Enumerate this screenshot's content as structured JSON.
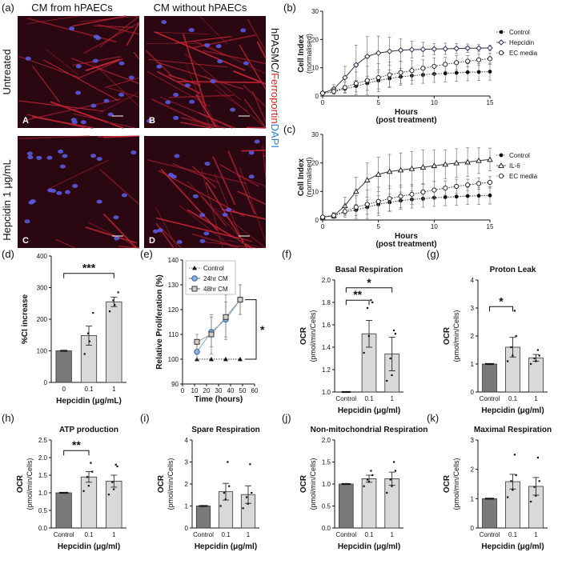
{
  "figure": {
    "panel_letters": [
      "(a)",
      "(b)",
      "(c)",
      "(d)",
      "(e)",
      "(f)",
      "(g)",
      "(h)",
      "(i)",
      "(j)",
      "(k)"
    ]
  },
  "micrographs": {
    "col_headers": [
      "CM from hPAECs",
      "CM without hPAECs"
    ],
    "row_labels": [
      "Untreated",
      "Hepcidin 1 μg/mL"
    ],
    "side_label_parts": [
      "hPASMC/",
      "Ferroportin",
      "DAPI"
    ],
    "side_label_colors": [
      "#111111",
      "#e0201a",
      "#2a7fd4"
    ],
    "scale_bar": "20 μm",
    "panel_tags": [
      "A",
      "B",
      "C",
      "D"
    ],
    "bg_color": "#2b0712",
    "fiber_color": "#c02535",
    "nuclei_color": "#5a5ae0"
  },
  "sig": {
    "d": "***",
    "e": "*",
    "f1": "**",
    "f2": "*",
    "g": "*",
    "h": "**"
  },
  "chart_data": [
    {
      "id": "b",
      "type": "line",
      "xlabel": "Hours",
      "xlabel2": "(post treatment)",
      "ylabel": "Cell Index",
      "ylabel2": "(normalised)",
      "xlim": [
        0,
        15
      ],
      "ylim": [
        0,
        30
      ],
      "xticks": [
        "0",
        "5",
        "10",
        "15"
      ],
      "yticks": [
        "0",
        "10",
        "20",
        "30"
      ],
      "x": [
        0,
        1,
        2,
        3,
        4,
        5,
        6,
        7,
        8,
        9,
        10,
        11,
        12,
        13,
        14,
        15
      ],
      "series": [
        {
          "name": "Control",
          "marker": "filled-circle",
          "dash": "dotted",
          "values": [
            1,
            1.5,
            2.5,
            3.5,
            4.5,
            5.5,
            6.2,
            6.8,
            7.2,
            7.5,
            7.8,
            8,
            8.2,
            8.4,
            8.5,
            8.6
          ],
          "err": [
            0.5,
            0.8,
            1.2,
            2,
            2.5,
            3,
            3,
            3,
            3,
            3,
            3,
            3,
            3,
            3,
            3,
            3
          ]
        },
        {
          "name": "Hepcidin",
          "marker": "open-diamond",
          "dash": "solid",
          "values": [
            1,
            2.5,
            6.5,
            11,
            14,
            15.2,
            15.8,
            16.2,
            16.4,
            16.5,
            16.6,
            16.7,
            16.8,
            16.9,
            16.9,
            17
          ],
          "err": [
            0.5,
            1.5,
            4,
            7,
            7,
            6,
            5,
            4,
            3,
            2.5,
            2,
            2,
            1.8,
            1.5,
            1.3,
            1
          ]
        },
        {
          "name": "EC media",
          "marker": "open-circle",
          "dash": "dotted",
          "values": [
            1,
            1.6,
            3,
            4.5,
            5.5,
            6.5,
            7.5,
            8.3,
            9,
            9.8,
            10.5,
            11.2,
            11.8,
            12.3,
            12.8,
            13.2
          ],
          "err": [
            0.5,
            1,
            2,
            4,
            5,
            5,
            4.5,
            4,
            3.5,
            3,
            3,
            2.5,
            2.5,
            2,
            2,
            2
          ]
        }
      ]
    },
    {
      "id": "c",
      "type": "line",
      "xlabel": "Hours",
      "xlabel2": "(post treatment)",
      "ylabel": "Cell Index",
      "ylabel2": "(normalised)",
      "xlim": [
        0,
        15
      ],
      "ylim": [
        0,
        30
      ],
      "xticks": [
        "0",
        "5",
        "10",
        "15"
      ],
      "yticks": [
        "0",
        "10",
        "20",
        "30"
      ],
      "x": [
        0,
        1,
        2,
        3,
        4,
        5,
        6,
        7,
        8,
        9,
        10,
        11,
        12,
        13,
        14,
        15
      ],
      "series": [
        {
          "name": "Control",
          "marker": "filled-circle",
          "dash": "dotted",
          "values": [
            1,
            1.5,
            2.8,
            3.5,
            4.5,
            5.5,
            6.2,
            6.8,
            7.2,
            7.5,
            7.8,
            8,
            8.2,
            8.4,
            8.5,
            8.6
          ],
          "err": [
            0.5,
            0.8,
            1.2,
            2,
            2.5,
            3,
            3,
            3,
            3,
            3,
            3,
            3,
            3,
            3,
            3,
            3
          ]
        },
        {
          "name": "IL-6",
          "marker": "open-triangle",
          "dash": "solid",
          "values": [
            1,
            1.5,
            5,
            10,
            14,
            16,
            17,
            17.5,
            18,
            18.5,
            19,
            19.5,
            20,
            20.3,
            20.8,
            21.2
          ],
          "err": [
            0.5,
            1,
            3,
            5,
            6,
            6,
            6,
            6,
            6,
            6,
            5.5,
            5,
            5,
            5,
            4.5,
            4
          ]
        },
        {
          "name": "EC media",
          "marker": "open-circle",
          "dash": "dotted",
          "values": [
            1,
            1.6,
            3,
            4.5,
            5.5,
            6.5,
            7.5,
            8.3,
            9,
            9.8,
            10.5,
            11.2,
            11.8,
            12.3,
            12.8,
            13.2
          ],
          "err": [
            0.5,
            1,
            2,
            4,
            5,
            5,
            4.5,
            4,
            3.5,
            3,
            3,
            2.5,
            2.5,
            2,
            2,
            2
          ]
        }
      ]
    },
    {
      "id": "d",
      "type": "bar",
      "ylabel": "%CI increase",
      "xlabel": "Hepcidin (μg/mL)",
      "categories": [
        "0",
        "0.1",
        "1"
      ],
      "values": [
        100,
        148,
        255
      ],
      "err": [
        0,
        30,
        15
      ],
      "ylim": [
        0,
        400
      ],
      "yticks": [
        "0",
        "100",
        "200",
        "300",
        "400"
      ],
      "points": [
        [
          100,
          100,
          100,
          100
        ],
        [
          90,
          130,
          155,
          220
        ],
        [
          225,
          245,
          260,
          285
        ]
      ]
    },
    {
      "id": "e",
      "type": "line",
      "ylabel": "Relative Proliferation (%)",
      "xlabel": "Time (hours)",
      "xlim": [
        0,
        60
      ],
      "ylim": [
        90,
        140
      ],
      "xticks": [
        "0",
        "10",
        "20",
        "30",
        "40",
        "50",
        "60"
      ],
      "yticks": [
        "90",
        "100",
        "110",
        "120",
        "130",
        "140"
      ],
      "x": [
        12,
        24,
        36,
        48
      ],
      "series": [
        {
          "name": "Control",
          "marker": "filled-triangle",
          "dash": "dotted",
          "values": [
            100,
            100,
            100,
            100
          ],
          "err": [
            0,
            0,
            0,
            0
          ]
        },
        {
          "name": "24hr CM",
          "marker": "circle-blue",
          "dash": "solid",
          "values": [
            103,
            111,
            116,
            124
          ],
          "err": [
            3,
            6,
            7,
            6
          ]
        },
        {
          "name": "48hr CM",
          "marker": "square-grey",
          "dash": "solid",
          "values": [
            107,
            110,
            117,
            124
          ],
          "err": [
            3,
            8,
            9,
            6
          ]
        }
      ]
    },
    {
      "id": "f",
      "type": "bar",
      "title": "Basal  Respiration",
      "ylabel": "OCR",
      "ylabel2": "(pmol/min/Cells)",
      "xlabel": "Hepcidin (μg/ml)",
      "categories": [
        "Control",
        "0.1",
        "1"
      ],
      "values": [
        1.0,
        1.52,
        1.34
      ],
      "err": [
        0,
        0.12,
        0.15
      ],
      "ylim": [
        1.0,
        2.0
      ],
      "yticks": [
        "1.0",
        "1.2",
        "1.4",
        "1.6",
        "1.8",
        "2.0"
      ],
      "points": [
        [
          1,
          1,
          1,
          1,
          1
        ],
        [
          1.35,
          1.5,
          1.75,
          1.8,
          1.82
        ],
        [
          1.1,
          1.15,
          1.3,
          1.52,
          1.55
        ]
      ]
    },
    {
      "id": "g",
      "type": "bar",
      "title": "Proton Leak",
      "ylabel": "OCR",
      "ylabel2": "(pmol/min/Cells)",
      "xlabel": "Hepcidin (μg/ml)",
      "categories": [
        "Control",
        "0.1",
        "1"
      ],
      "values": [
        1.0,
        1.6,
        1.22
      ],
      "err": [
        0,
        0.35,
        0.12
      ],
      "ylim": [
        0,
        4
      ],
      "yticks": [
        "0",
        "1",
        "2",
        "3",
        "4"
      ],
      "points": [
        [
          1,
          1,
          1,
          1,
          1
        ],
        [
          1.1,
          1.3,
          1.6,
          2.0,
          2.9
        ],
        [
          1.0,
          1.1,
          1.2,
          1.3,
          1.5
        ]
      ]
    },
    {
      "id": "h",
      "type": "bar",
      "title": "ATP production",
      "ylabel": "OCR",
      "ylabel2": "(pmol/min/Cells)",
      "xlabel": "Hepcidin (μg/ml)",
      "categories": [
        "Control",
        "0.1",
        "1"
      ],
      "values": [
        1.0,
        1.45,
        1.33
      ],
      "err": [
        0,
        0.15,
        0.17
      ],
      "ylim": [
        0,
        2.5
      ],
      "yticks": [
        "0.0",
        "0.5",
        "1.0",
        "1.5",
        "2.0",
        "2.5"
      ],
      "points": [
        [
          1,
          1,
          1,
          1,
          1
        ],
        [
          1.05,
          1.2,
          1.45,
          1.6,
          1.85
        ],
        [
          0.95,
          1.1,
          1.3,
          1.75,
          1.8
        ]
      ]
    },
    {
      "id": "i",
      "type": "bar",
      "title": "Spare  Respiration",
      "ylabel": "OCR",
      "ylabel2": "(pmol/min/Cells)",
      "xlabel": "Hepcidin (μg/ml)",
      "categories": [
        "Control",
        "0.1",
        "1"
      ],
      "values": [
        1.0,
        1.65,
        1.52
      ],
      "err": [
        0,
        0.38,
        0.4
      ],
      "ylim": [
        0,
        4
      ],
      "yticks": [
        "0",
        "1",
        "2",
        "3",
        "4"
      ],
      "points": [
        [
          1,
          1,
          1,
          1,
          1
        ],
        [
          1.0,
          1.3,
          1.6,
          1.9,
          3.0
        ],
        [
          0.9,
          1.1,
          1.4,
          1.6,
          2.9
        ]
      ]
    },
    {
      "id": "j",
      "type": "bar",
      "title": "Non-mitochondrial Respiration",
      "ylabel": "OCR",
      "ylabel2": "(pmol/min/Cells)",
      "xlabel": "Hepcidin (μg/ml)",
      "categories": [
        "Control",
        "0.1",
        "1"
      ],
      "values": [
        1.0,
        1.12,
        1.12
      ],
      "err": [
        0,
        0.08,
        0.15
      ],
      "ylim": [
        0,
        2.0
      ],
      "yticks": [
        "0.0",
        "0.5",
        "1.0",
        "1.5",
        "2.0"
      ],
      "points": [
        [
          1,
          1,
          1,
          1,
          1
        ],
        [
          0.95,
          1.05,
          1.1,
          1.2,
          1.3
        ],
        [
          0.8,
          0.95,
          1.1,
          1.3,
          1.5
        ]
      ]
    },
    {
      "id": "k",
      "type": "bar",
      "title": "Maximal Respiration",
      "ylabel": "OCR",
      "ylabel2": "(pmol/min/Cells)",
      "xlabel": "Hepcidin (μg/ml)",
      "categories": [
        "Control",
        "0.1",
        "1"
      ],
      "values": [
        1.0,
        1.58,
        1.42
      ],
      "err": [
        0,
        0.25,
        0.3
      ],
      "ylim": [
        0,
        3
      ],
      "yticks": [
        "0",
        "1",
        "2",
        "3"
      ],
      "points": [
        [
          1,
          1,
          1,
          1,
          1
        ],
        [
          1.05,
          1.3,
          1.6,
          1.8,
          2.5
        ],
        [
          0.9,
          1.1,
          1.4,
          1.6,
          2.4
        ]
      ]
    }
  ]
}
